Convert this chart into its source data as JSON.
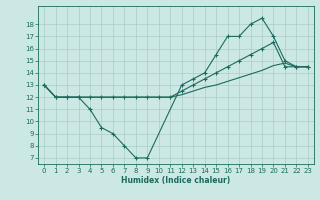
{
  "xlabel": "Humidex (Indice chaleur)",
  "bg_color": "#cce8e4",
  "grid_color": "#aaccca",
  "line_color": "#1a6b5e",
  "xlim": [
    -0.5,
    23.5
  ],
  "ylim": [
    6.5,
    19.5
  ],
  "xticks": [
    0,
    1,
    2,
    3,
    4,
    5,
    6,
    7,
    8,
    9,
    10,
    11,
    12,
    13,
    14,
    15,
    16,
    17,
    18,
    19,
    20,
    21,
    22,
    23
  ],
  "yticks": [
    7,
    8,
    9,
    10,
    11,
    12,
    13,
    14,
    15,
    16,
    17,
    18
  ],
  "line1_x": [
    0,
    1,
    2,
    3,
    4,
    5,
    6,
    7,
    8,
    9,
    12,
    13,
    14,
    15,
    16,
    17,
    18,
    19,
    20,
    21,
    22,
    23
  ],
  "line1_y": [
    13,
    12,
    12,
    12,
    11,
    9.5,
    9,
    8,
    7,
    7,
    13,
    13.5,
    14,
    15.5,
    17,
    17,
    18,
    18.5,
    17,
    15,
    14.5,
    14.5
  ],
  "line2_x": [
    0,
    1,
    2,
    3,
    4,
    5,
    6,
    7,
    8,
    9,
    10,
    11,
    12,
    13,
    14,
    15,
    16,
    17,
    18,
    19,
    20,
    21,
    22,
    23
  ],
  "line2_y": [
    13,
    12,
    12,
    12,
    12,
    12,
    12,
    12,
    12,
    12,
    12,
    12,
    12.5,
    13,
    13.5,
    14,
    14.5,
    15,
    15.5,
    16,
    16.5,
    14.5,
    14.5,
    14.5
  ],
  "line3_x": [
    0,
    1,
    2,
    3,
    4,
    5,
    6,
    7,
    8,
    9,
    10,
    11,
    12,
    13,
    14,
    15,
    16,
    17,
    18,
    19,
    20,
    21,
    22,
    23
  ],
  "line3_y": [
    13,
    12,
    12,
    12,
    12,
    12,
    12,
    12,
    12,
    12,
    12,
    12,
    12.2,
    12.5,
    12.8,
    13.0,
    13.3,
    13.6,
    13.9,
    14.2,
    14.6,
    14.8,
    14.5,
    14.5
  ]
}
